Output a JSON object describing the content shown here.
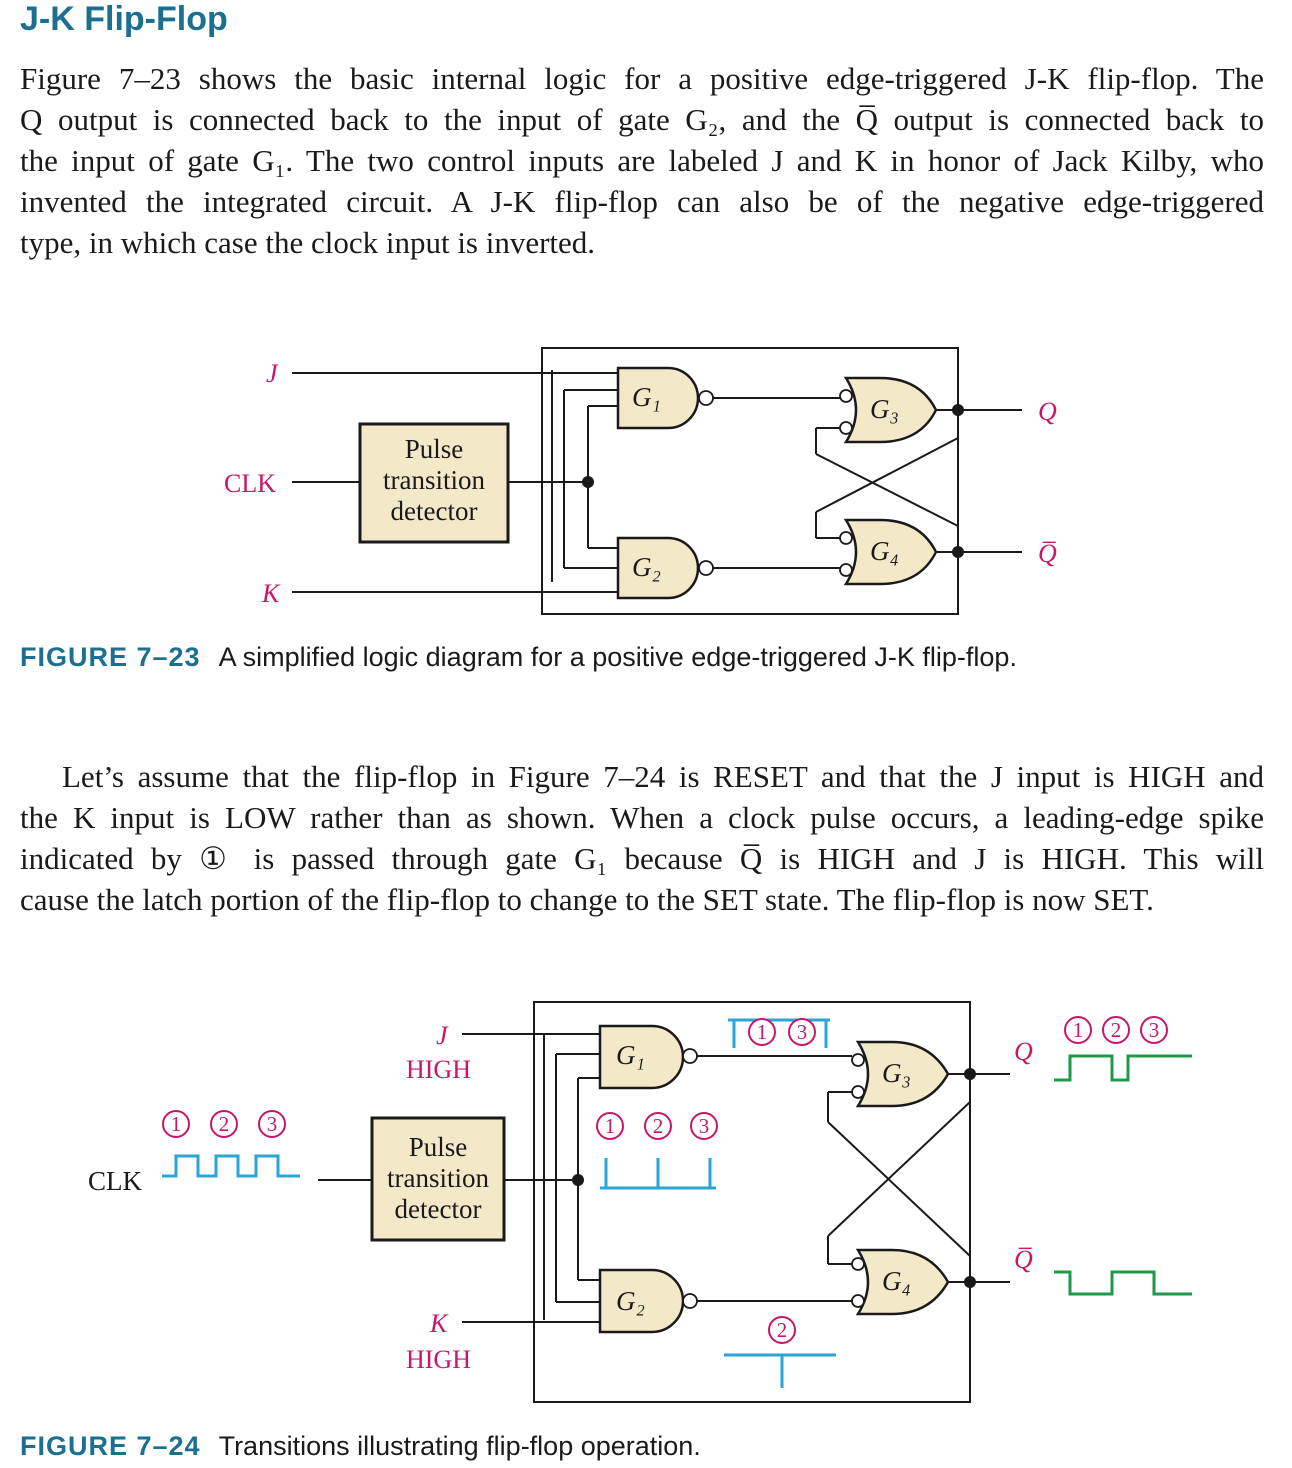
{
  "heading": "J-K Flip-Flop",
  "paragraph1": {
    "line1": "Figure 7–23 shows the basic internal logic for a positive edge-triggered J-K flip-flop. The",
    "line2": "Q output is connected back to the input of gate G₂, and the Q̅ output is connected back to",
    "line3": "the input of gate G₁. The two control inputs are labeled J and K in honor of Jack Kilby, who",
    "line4": "invented the integrated circuit. A J-K flip-flop can also be of the negative edge-triggered",
    "line5": "type, in which case the clock input is inverted."
  },
  "figure23": {
    "labels": {
      "j": "J",
      "clk": "CLK",
      "k": "K",
      "q": "Q",
      "qbar": "Q̅",
      "detector_line1": "Pulse",
      "detector_line2": "transition",
      "detector_line3": "detector",
      "g1": "G₁",
      "g2": "G₂",
      "g3": "G₃",
      "g4": "G₄"
    },
    "caption_label": "FIGURE 7–23",
    "caption_text": "A simplified logic diagram for a positive edge-triggered J-K flip-flop."
  },
  "paragraph2": {
    "line1": "Let’s assume that the flip-flop in Figure 7–24 is RESET and that the J input is HIGH and",
    "line2": "the K input is LOW rather than as shown. When a clock pulse occurs, a leading-edge spike",
    "line3": "indicated by ① is passed through gate G₁ because Q̅ is HIGH and J is HIGH. This will",
    "line4": "cause the latch portion of the flip-flop to change to the SET state. The flip-flop is now SET."
  },
  "figure24": {
    "labels": {
      "j": "J",
      "j_level": "HIGH",
      "k": "K",
      "k_level": "HIGH",
      "clk": "CLK",
      "q": "Q",
      "qbar": "Q̅",
      "detector_line1": "Pulse",
      "detector_line2": "transition",
      "detector_line3": "detector",
      "g1": "G₁",
      "g2": "G₂",
      "g3": "G₃",
      "g4": "G₄",
      "m1": "1",
      "m2": "2",
      "m3": "3"
    },
    "caption_label": "FIGURE 7–24",
    "caption_text": "Transitions illustrating flip-flop operation."
  },
  "colors": {
    "heading": "#1b6f8f",
    "signal_label": "#c8166a",
    "clock_waveform": "#2aa6d6",
    "output_waveform": "#1e9a4a",
    "gate_fill": "#f3e9c8"
  }
}
